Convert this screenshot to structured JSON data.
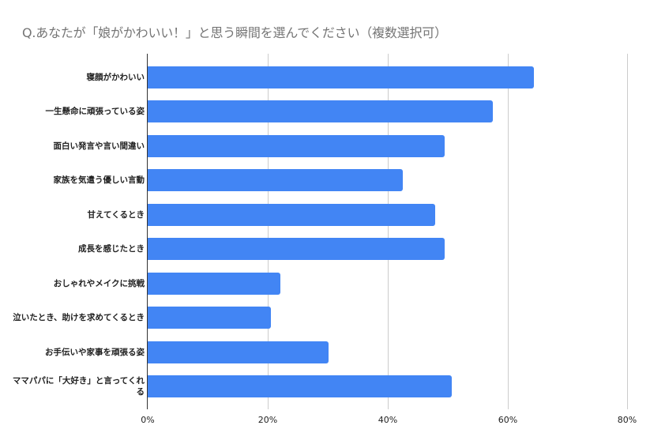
{
  "title": "Q.あなたが「娘がかわいい！」と思う瞬間を選んでください（複数選択可）",
  "colors": {
    "bar": "#4285f4",
    "gridline": "#cccccc",
    "axis": "#333333",
    "title": "#757575"
  },
  "axis": {
    "ticks": [
      "0%",
      "20%",
      "40%",
      "60%",
      "80%"
    ]
  },
  "chart_data": {
    "type": "bar",
    "orientation": "horizontal",
    "title": "Q.あなたが「娘がかわいい！」と思う瞬間を選んでください（複数選択可）",
    "xlabel": "",
    "ylabel": "",
    "categories": [
      "寝顔がかわいい",
      "一生懸命に頑張っている姿",
      "面白い発言や言い間違い",
      "家族を気遣う優しい言動",
      "甘えてくるとき",
      "成長を感じたとき",
      "おしゃれやメイクに挑戦",
      "泣いたとき、助けを求めてくるとき",
      "お手伝いや家事を頑張る姿",
      "ママパパに「大好き」と言ってくれる"
    ],
    "values": [
      64.5,
      57.6,
      49.5,
      42.6,
      48.0,
      49.5,
      22.1,
      20.6,
      30.2,
      50.8
    ],
    "unit": "%",
    "xlim": [
      0,
      80
    ],
    "x_ticks": [
      "0%",
      "20%",
      "40%",
      "60%",
      "80%"
    ],
    "grid": true,
    "legend": "none"
  }
}
